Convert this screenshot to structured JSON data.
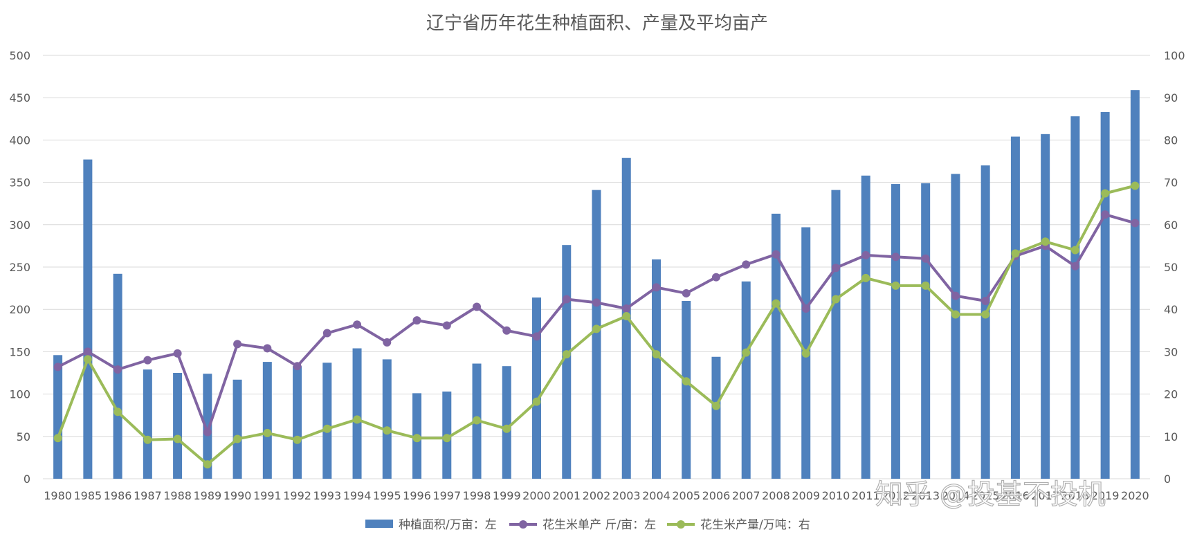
{
  "chart_data": {
    "type": "bar",
    "title": "辽宁省历年花生种植面积、产量及平均亩产",
    "categories": [
      "1980",
      "1985",
      "1986",
      "1987",
      "1988",
      "1989",
      "1990",
      "1991",
      "1992",
      "1993",
      "1994",
      "1995",
      "1996",
      "1997",
      "1998",
      "1999",
      "2000",
      "2001",
      "2002",
      "2003",
      "2004",
      "2005",
      "2006",
      "2007",
      "2008",
      "2009",
      "2010",
      "2011",
      "2012",
      "2013",
      "2014",
      "2015",
      "2016",
      "2017",
      "2018",
      "2019",
      "2020"
    ],
    "y_left": {
      "range": [
        0,
        500
      ],
      "ticks": [
        "0",
        "50",
        "100",
        "150",
        "200",
        "250",
        "300",
        "350",
        "400",
        "450",
        "500"
      ]
    },
    "y_right": {
      "range": [
        0,
        100
      ],
      "ticks": [
        "0",
        "10",
        "20",
        "30",
        "40",
        "50",
        "60",
        "70",
        "80",
        "90",
        "100"
      ]
    },
    "grid": true,
    "legend_position": "bottom",
    "series": [
      {
        "name": "种植面积/万亩：左",
        "type": "bar",
        "axis": "left",
        "color": "#4f81bd",
        "values": [
          146,
          377,
          242,
          129,
          125,
          124,
          117,
          138,
          133,
          137,
          154,
          141,
          101,
          103,
          136,
          133,
          214,
          276,
          341,
          379,
          259,
          210,
          144,
          233,
          313,
          297,
          341,
          358,
          348,
          349,
          360,
          370,
          404,
          407,
          428,
          433,
          459
        ]
      },
      {
        "name": "花生米单产 斤/亩：左",
        "type": "line",
        "axis": "left",
        "color": "#8064a2",
        "values": [
          132,
          150,
          129,
          140,
          148,
          55,
          159,
          154,
          133,
          172,
          182,
          161,
          187,
          181,
          203,
          175,
          168,
          212,
          208,
          201,
          226,
          219,
          238,
          253,
          265,
          201,
          249,
          264,
          262,
          260,
          216,
          210,
          263,
          275,
          251,
          312,
          302
        ]
      },
      {
        "name": "花生米产量/万吨：右",
        "type": "line",
        "axis": "right",
        "color": "#9bbb59",
        "values": [
          9.6,
          28.2,
          15.8,
          9.2,
          9.4,
          3.4,
          9.4,
          10.8,
          9.2,
          11.8,
          14.0,
          11.4,
          9.6,
          9.6,
          13.8,
          11.8,
          18.2,
          29.4,
          35.4,
          38.4,
          29.4,
          23.0,
          17.2,
          29.8,
          41.4,
          29.6,
          42.4,
          47.4,
          45.6,
          45.6,
          38.8,
          38.8,
          53.2,
          56.0,
          54.0,
          67.4,
          69.2
        ]
      }
    ]
  },
  "watermark": {
    "text": "知乎 @投基不投机"
  }
}
